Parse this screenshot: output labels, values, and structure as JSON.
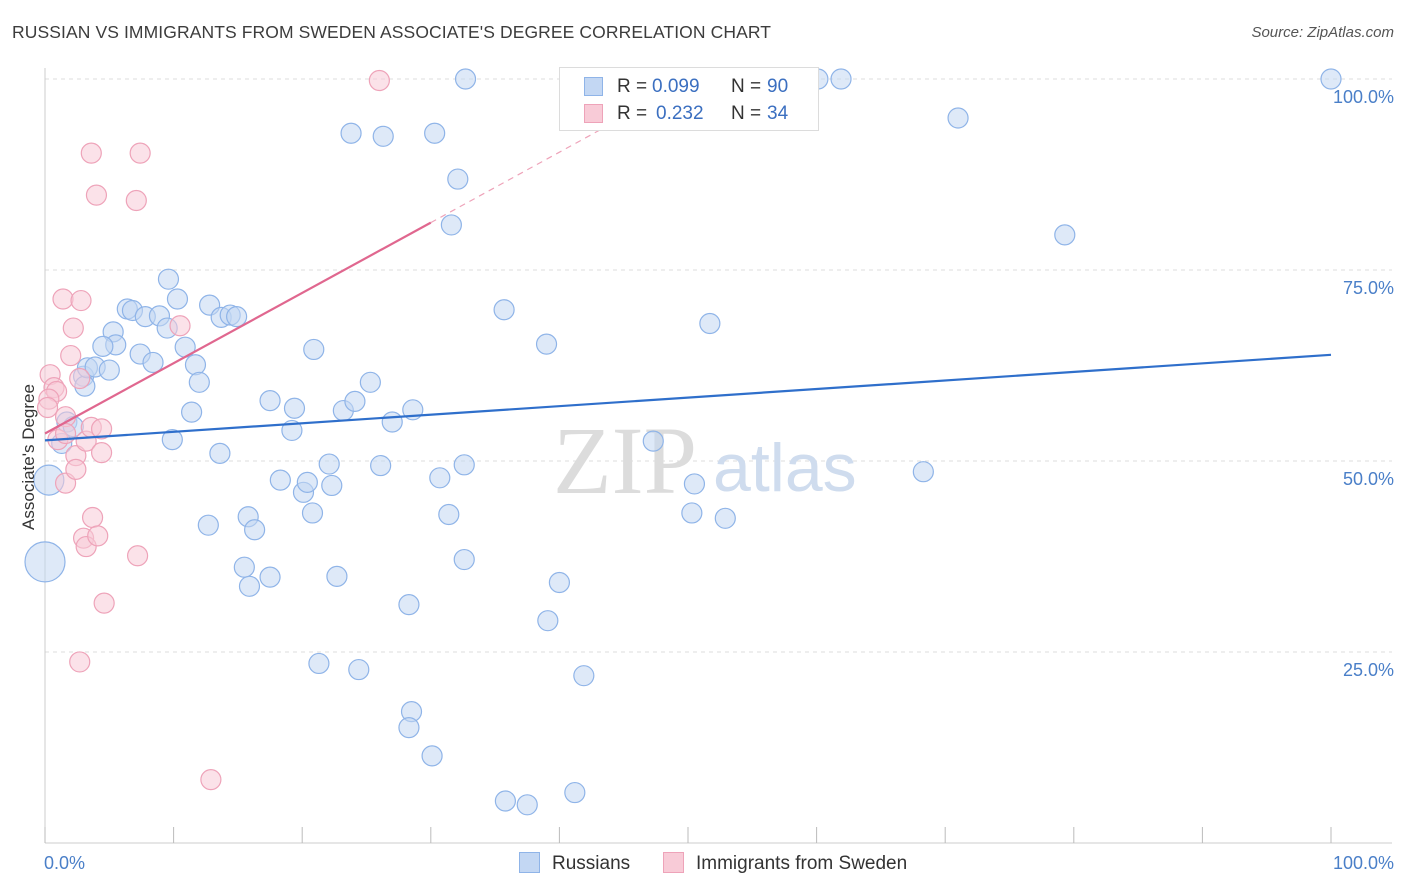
{
  "title": "RUSSIAN VS IMMIGRANTS FROM SWEDEN ASSOCIATE'S DEGREE CORRELATION CHART",
  "source": "Source: ZipAtlas.com",
  "watermark": {
    "zip": "ZIP",
    "atlas": "atlas"
  },
  "legend": {
    "r_label": "R =",
    "n_label": "N =",
    "rows": [
      {
        "name": "Russians",
        "r": "0.099",
        "n": "90",
        "color": "#8fb4e8",
        "fill": "#c3d7f3"
      },
      {
        "name": "Immigrants from Sweden",
        "r": "0.232",
        "n": "34",
        "color": "#eea3b9",
        "fill": "#f8cbd7"
      }
    ]
  },
  "chart_data": {
    "type": "scatter",
    "title": "RUSSIAN VS IMMIGRANTS FROM SWEDEN ASSOCIATE'S DEGREE CORRELATION CHART",
    "xlabel": "",
    "ylabel": "Associate's Degree",
    "xlim": [
      0,
      100
    ],
    "ylim": [
      0,
      100
    ],
    "x_tick_labels": [
      "0.0%",
      "100.0%"
    ],
    "y_tick_labels": [
      "25.0%",
      "50.0%",
      "75.0%",
      "100.0%"
    ],
    "y_ticks": [
      25,
      50,
      75,
      100
    ],
    "grid": true,
    "legend_position": "top-center",
    "series": [
      {
        "name": "Russians",
        "color": "#8fb4e8",
        "fill": "#c3d7f3",
        "trend": {
          "x": [
            0,
            100
          ],
          "y": [
            52.7,
            63.9
          ]
        },
        "points": [
          [
            1.7,
            55.1
          ],
          [
            2.2,
            54.5
          ],
          [
            1.3,
            52.3
          ],
          [
            3.0,
            61.1
          ],
          [
            3.1,
            59.8
          ],
          [
            3.3,
            62.2
          ],
          [
            3.9,
            62.3
          ],
          [
            5.0,
            61.9
          ],
          [
            5.3,
            66.9
          ],
          [
            5.5,
            65.2
          ],
          [
            4.5,
            65.0
          ],
          [
            6.4,
            69.9
          ],
          [
            6.8,
            69.7
          ],
          [
            7.4,
            64.0
          ],
          [
            7.8,
            68.9
          ],
          [
            8.4,
            62.9
          ],
          [
            8.9,
            69.0
          ],
          [
            9.5,
            67.4
          ],
          [
            9.6,
            73.8
          ],
          [
            10.3,
            71.2
          ],
          [
            10.9,
            64.9
          ],
          [
            11.7,
            62.6
          ],
          [
            12.0,
            60.3
          ],
          [
            12.8,
            70.4
          ],
          [
            13.7,
            68.8
          ],
          [
            14.4,
            69.1
          ],
          [
            14.9,
            68.9
          ],
          [
            9.9,
            52.8
          ],
          [
            11.4,
            56.4
          ],
          [
            13.6,
            51.0
          ],
          [
            12.7,
            41.6
          ],
          [
            15.8,
            42.7
          ],
          [
            16.3,
            41.0
          ],
          [
            15.5,
            36.1
          ],
          [
            15.9,
            33.6
          ],
          [
            17.5,
            34.8
          ],
          [
            17.5,
            57.9
          ],
          [
            18.3,
            47.5
          ],
          [
            19.2,
            54.0
          ],
          [
            19.4,
            56.9
          ],
          [
            20.1,
            45.9
          ],
          [
            20.4,
            47.2
          ],
          [
            20.8,
            43.2
          ],
          [
            22.1,
            49.6
          ],
          [
            22.3,
            46.8
          ],
          [
            22.7,
            34.9
          ],
          [
            20.9,
            64.6
          ],
          [
            23.2,
            56.6
          ],
          [
            24.1,
            57.8
          ],
          [
            25.3,
            60.3
          ],
          [
            26.1,
            49.4
          ],
          [
            27.0,
            55.1
          ],
          [
            28.6,
            56.7
          ],
          [
            30.7,
            47.8
          ],
          [
            31.4,
            43.0
          ],
          [
            32.6,
            37.1
          ],
          [
            32.6,
            49.5
          ],
          [
            32.1,
            86.9
          ],
          [
            31.6,
            80.9
          ],
          [
            30.3,
            92.9
          ],
          [
            23.8,
            92.9
          ],
          [
            26.3,
            92.5
          ],
          [
            32.7,
            100.0
          ],
          [
            35.7,
            69.8
          ],
          [
            39.0,
            65.3
          ],
          [
            40.0,
            34.1
          ],
          [
            39.1,
            29.1
          ],
          [
            35.8,
            5.5
          ],
          [
            37.5,
            5.0
          ],
          [
            41.2,
            6.6
          ],
          [
            41.9,
            21.9
          ],
          [
            30.1,
            11.4
          ],
          [
            28.5,
            17.2
          ],
          [
            28.3,
            15.1
          ],
          [
            24.4,
            22.7
          ],
          [
            21.3,
            23.5
          ],
          [
            28.3,
            31.2
          ],
          [
            47.3,
            52.6
          ],
          [
            50.3,
            43.2
          ],
          [
            50.5,
            47.0
          ],
          [
            51.7,
            68.0
          ],
          [
            52.9,
            42.5
          ],
          [
            60.1,
            100.0
          ],
          [
            61.9,
            100.0
          ],
          [
            68.3,
            48.6
          ],
          [
            71.0,
            94.9
          ],
          [
            79.3,
            79.6
          ],
          [
            100.0,
            100.0
          ],
          [
            0.3,
            47.5
          ],
          [
            0.0,
            36.8
          ]
        ],
        "sizes": [
          10,
          10,
          10,
          10,
          10,
          10,
          10,
          10,
          10,
          10,
          10,
          10,
          10,
          10,
          10,
          10,
          10,
          10,
          10,
          10,
          10,
          10,
          10,
          10,
          10,
          10,
          10,
          10,
          10,
          10,
          10,
          10,
          10,
          10,
          10,
          10,
          10,
          10,
          10,
          10,
          10,
          10,
          10,
          10,
          10,
          10,
          10,
          10,
          10,
          10,
          10,
          10,
          10,
          10,
          10,
          10,
          10,
          10,
          10,
          10,
          10,
          10,
          10,
          10,
          10,
          10,
          10,
          10,
          10,
          10,
          10,
          10,
          10,
          10,
          10,
          10,
          10,
          10,
          10,
          10,
          10,
          10,
          10,
          10,
          10,
          10,
          10,
          10,
          15,
          20
        ]
      },
      {
        "name": "Immigrants from Sweden",
        "color": "#eea3b9",
        "fill": "#f8cbd7",
        "trend": {
          "x": [
            0,
            30
          ],
          "y": [
            53.6,
            81.2
          ]
        },
        "trend_extended": {
          "x": [
            30,
            48
          ],
          "y": [
            81.2,
            97.8
          ]
        },
        "points": [
          [
            0.4,
            61.3
          ],
          [
            0.7,
            59.6
          ],
          [
            0.9,
            59.1
          ],
          [
            0.3,
            58.1
          ],
          [
            1.4,
            71.2
          ],
          [
            2.2,
            67.4
          ],
          [
            2.0,
            63.8
          ],
          [
            1.6,
            55.8
          ],
          [
            1.0,
            52.8
          ],
          [
            1.6,
            53.6
          ],
          [
            2.4,
            50.7
          ],
          [
            1.6,
            47.1
          ],
          [
            2.8,
            71.0
          ],
          [
            2.7,
            60.8
          ],
          [
            3.2,
            52.6
          ],
          [
            3.6,
            54.4
          ],
          [
            2.4,
            48.9
          ],
          [
            3.0,
            39.9
          ],
          [
            3.7,
            42.6
          ],
          [
            3.2,
            38.8
          ],
          [
            4.1,
            40.2
          ],
          [
            4.4,
            51.1
          ],
          [
            4.4,
            54.2
          ],
          [
            4.6,
            31.4
          ],
          [
            2.7,
            23.7
          ],
          [
            3.6,
            90.3
          ],
          [
            4.0,
            84.8
          ],
          [
            7.4,
            90.3
          ],
          [
            7.1,
            84.1
          ],
          [
            7.2,
            37.6
          ],
          [
            10.5,
            67.7
          ],
          [
            12.9,
            8.3
          ],
          [
            26.0,
            99.8
          ],
          [
            0.2,
            57.0
          ]
        ],
        "sizes": [
          10,
          10,
          10,
          10,
          10,
          10,
          10,
          10,
          10,
          10,
          10,
          10,
          10,
          10,
          10,
          10,
          10,
          10,
          10,
          10,
          10,
          10,
          10,
          10,
          10,
          10,
          10,
          10,
          10,
          10,
          10,
          10,
          10,
          10
        ]
      }
    ]
  }
}
